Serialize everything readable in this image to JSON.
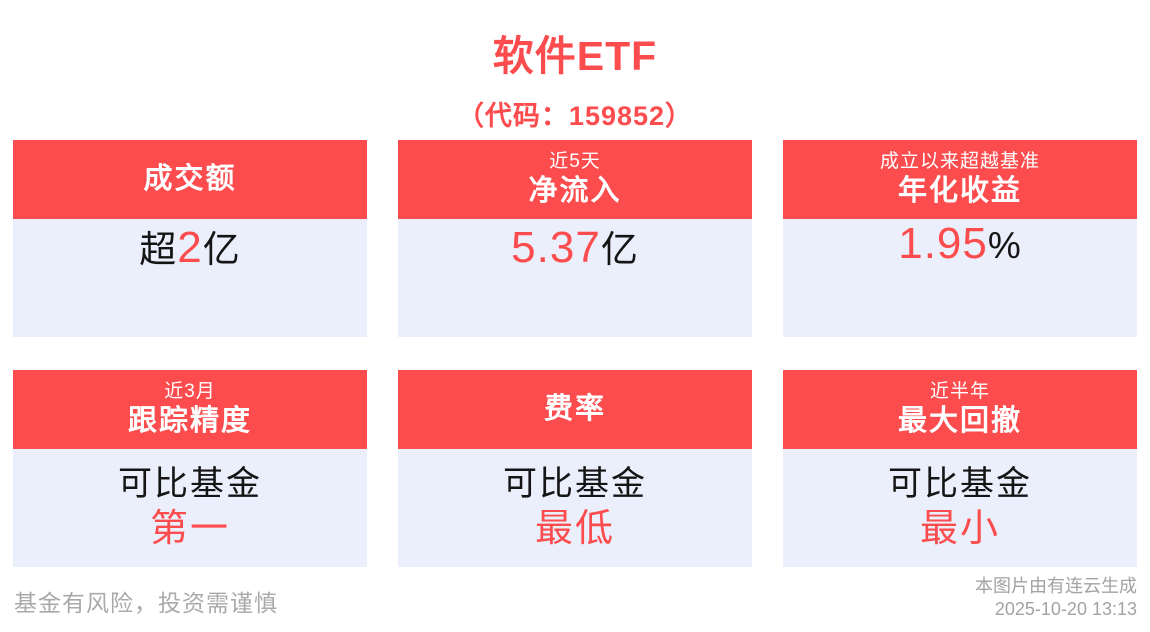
{
  "colors": {
    "accent_red": "#FC4C4E",
    "card_body_bg": "#EBEFFB",
    "text_dark": "#151515",
    "text_gray": "#A9A9A9",
    "page_bg": "#FFFFFF"
  },
  "header": {
    "title": "软件ETF",
    "subtitle": "（代码：159852）"
  },
  "cards": [
    {
      "header": {
        "small": "",
        "large": "成交额"
      },
      "body": {
        "pre": "超",
        "value": "2",
        "post": "亿"
      }
    },
    {
      "header": {
        "small": "近5天",
        "large": "净流入"
      },
      "body": {
        "pre": "",
        "value": "5.37",
        "post": "亿"
      }
    },
    {
      "header": {
        "small": "成立以来超越基准",
        "large": "年化收益"
      },
      "body": {
        "pre": "",
        "value": "1.95",
        "post": "%"
      }
    },
    {
      "header": {
        "small": "近3月",
        "large": "跟踪精度"
      },
      "body": {
        "line1": "可比基金",
        "line2": "第一"
      }
    },
    {
      "header": {
        "small": "",
        "large": "费率"
      },
      "body": {
        "line1": "可比基金",
        "line2": "最低"
      }
    },
    {
      "header": {
        "small": "近半年",
        "large": "最大回撤"
      },
      "body": {
        "line1": "可比基金",
        "line2": "最小"
      }
    }
  ],
  "footer": {
    "disclaimer": "基金有风险，投资需谨慎",
    "watermark_line1": "本图片由有连云生成",
    "watermark_line2": "2025-10-20 13:13"
  }
}
